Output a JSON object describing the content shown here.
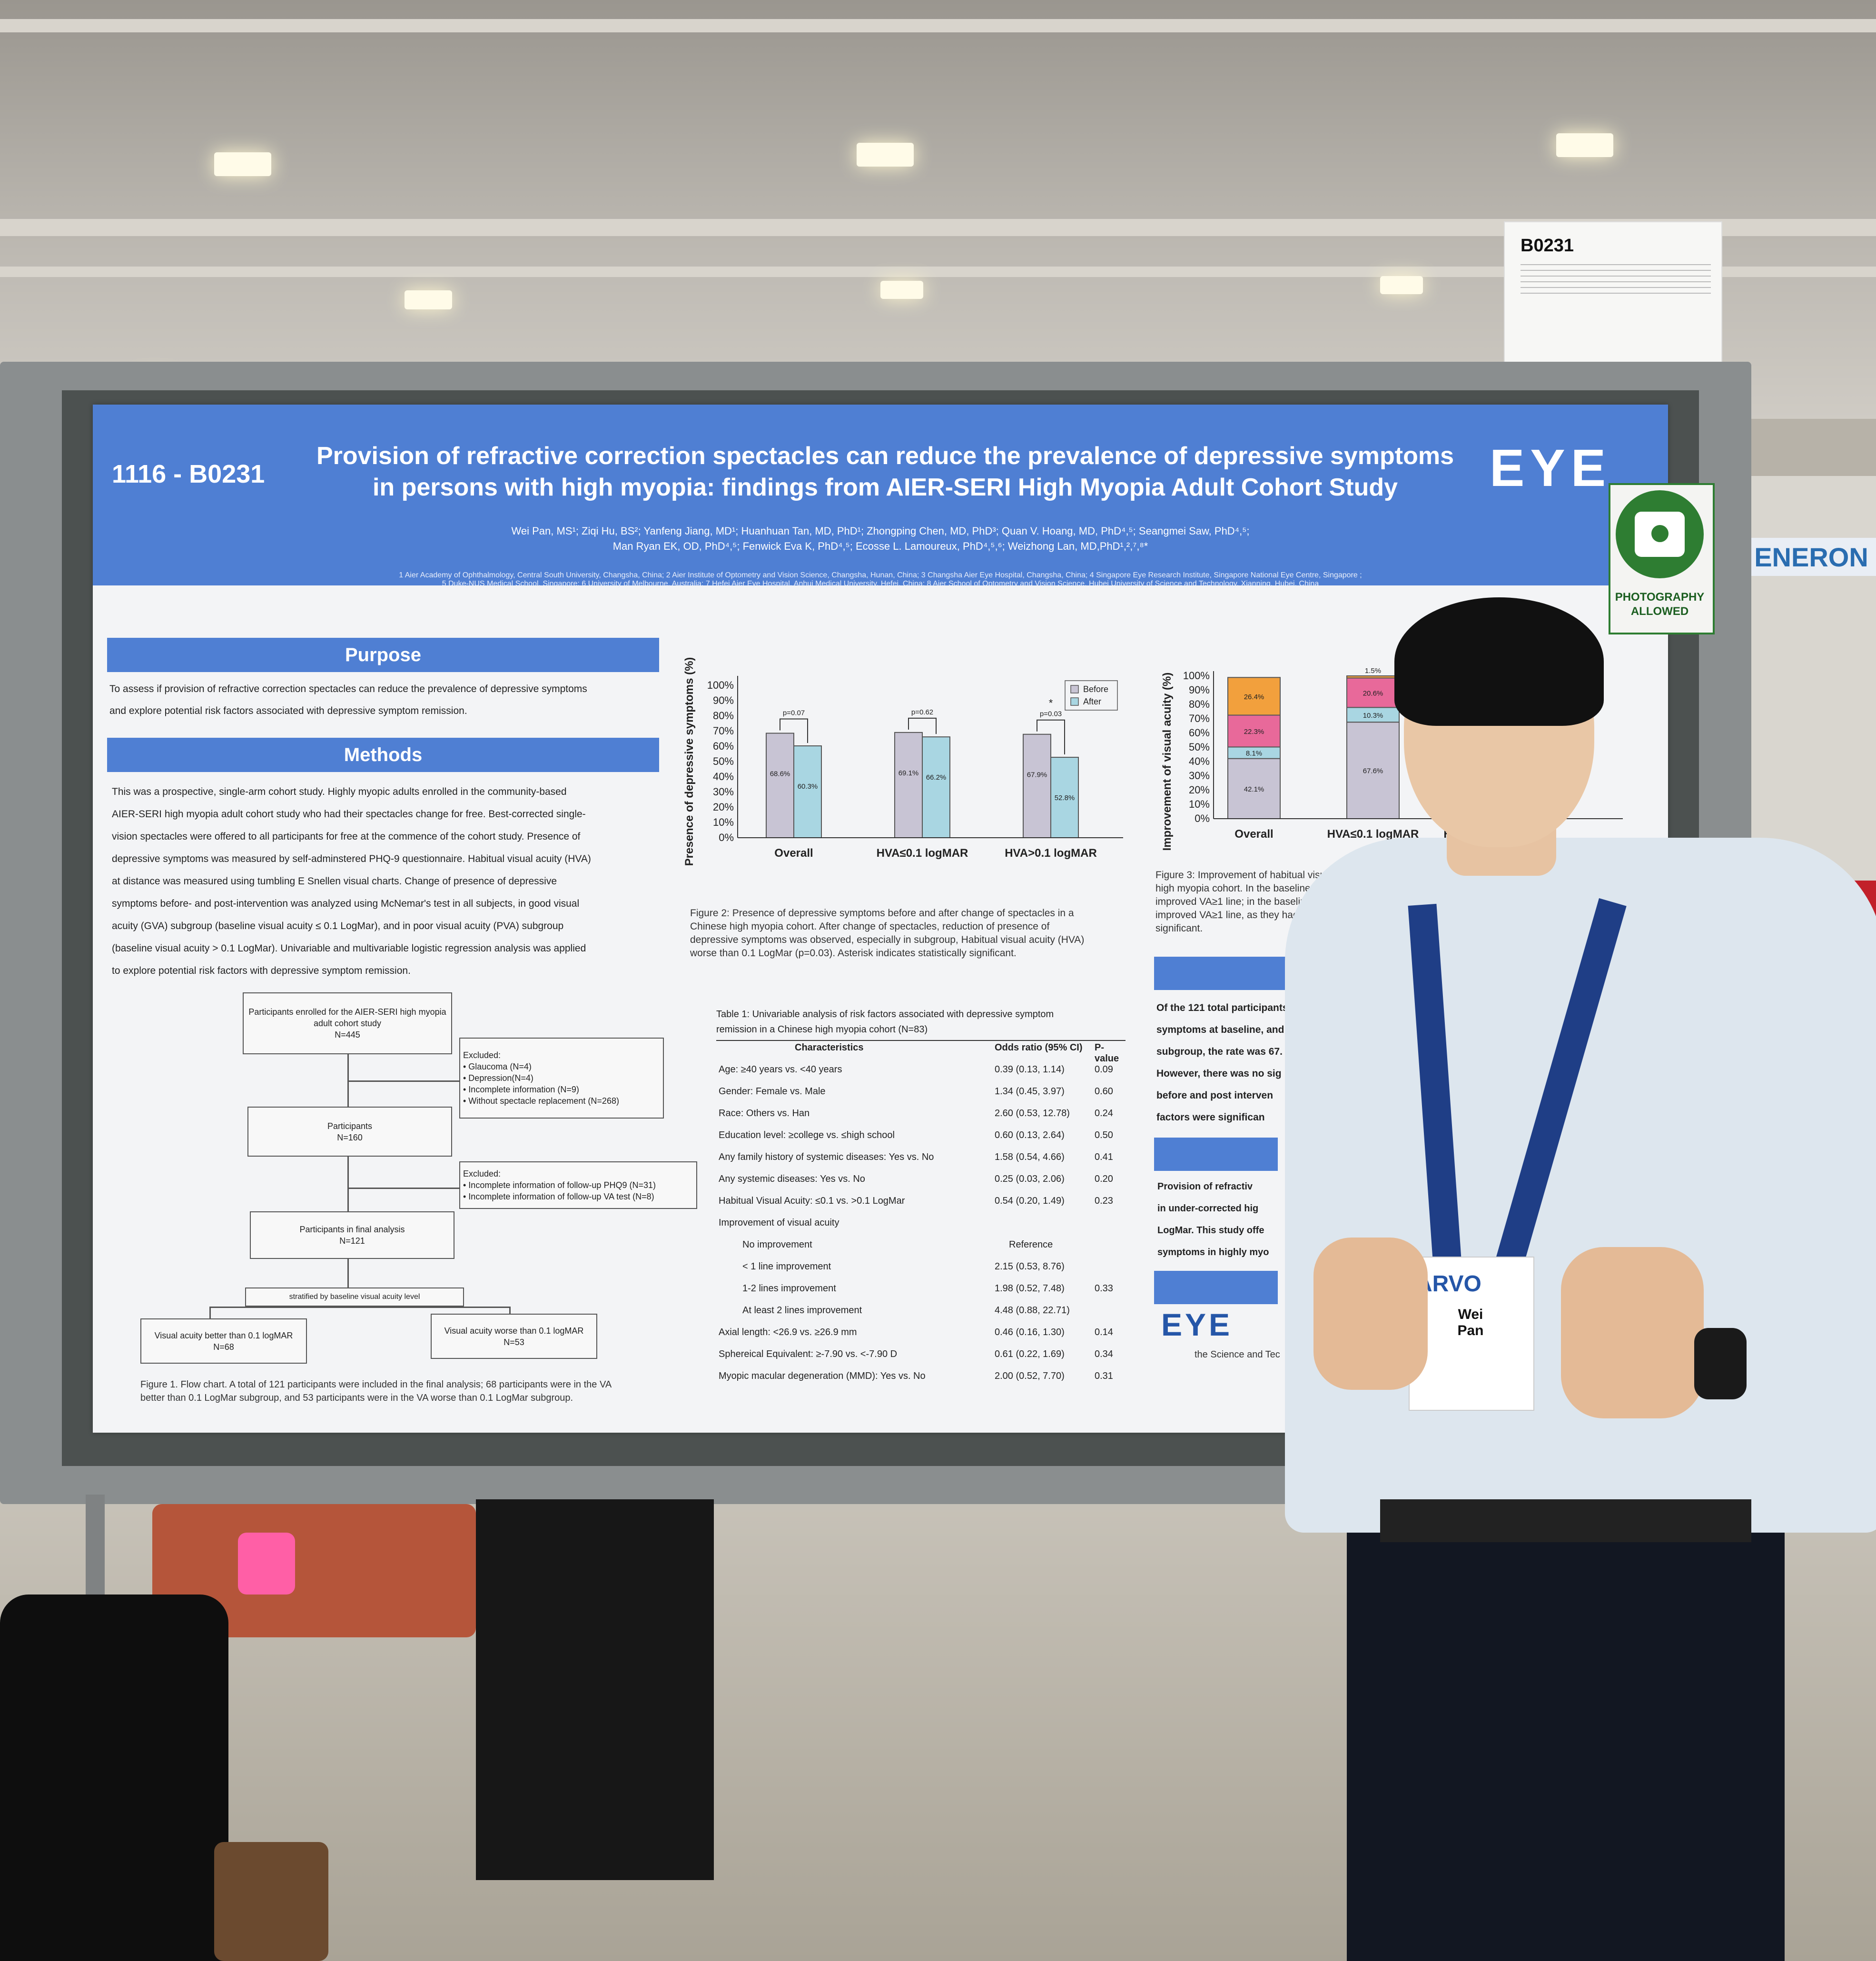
{
  "sign": {
    "title": "B0231"
  },
  "hall_booth": {
    "name": "ENERON"
  },
  "poster": {
    "id": "1116 - B0231",
    "title_line1": "Provision of refractive correction spectacles can reduce the prevalence of depressive symptoms",
    "title_line2": "in persons with high myopia: findings from AIER-SERI High Myopia Adult Cohort Study",
    "authors_line1": "Wei Pan, MS¹; Ziqi Hu, BS²; Yanfeng Jiang, MD¹; Huanhuan Tan, MD, PhD¹; Zhongping Chen, MD, PhD³; Quan V. Hoang, MD, PhD⁴,⁵; Seangmei Saw, PhD⁴,⁵;",
    "authors_line2": "Man Ryan EK, OD, PhD⁴,⁵; Fenwick Eva K, PhD⁴,⁵; Ecosse L. Lamoureux, PhD⁴,⁵,⁶; Weizhong Lan, MD,PhD¹,²,⁷,⁸*",
    "affiliations_line1": "1 Aier Academy of Ophthalmology, Central South University, Changsha, China; 2 Aier Institute of Optometry and Vision Science, Changsha, Hunan, China; 3 Changsha Aier Eye Hospital, Changsha, China; 4 Singapore Eye Research Institute, Singapore National Eye Centre, Singapore ;",
    "affiliations_line2": "5 Duke-NUS Medical School, Singapore; 6 University of Melbourne, Australia; 7 Hefei Aier Eye Hospital, Anhui Medical University, Hefei, China; 8 Aier School of Optometry and Vision Science, Hubei University of Science and Technology, Xianning, Hubei, China",
    "logo": "EYE",
    "photo_sign": {
      "line1": "PHOTOGRAPHY",
      "line2": "ALLOWED"
    },
    "purpose": {
      "heading": "Purpose",
      "line1": "To assess if provision of refractive correction spectacles can reduce the prevalence of depressive symptoms",
      "line2": "and explore potential risk factors associated with depressive symptom remission."
    },
    "methods": {
      "heading": "Methods",
      "lines": [
        "This was a prospective, single-arm cohort study. Highly myopic adults enrolled in the community-based",
        "AIER-SERI high myopia adult cohort study who had their spectacles change for free. Best-corrected single-",
        "vision spectacles were offered to all participants for free at the commence of the cohort study. Presence of",
        "depressive symptoms was measured by self-adminstered PHQ-9 questionnaire. Habitual visual acuity (HVA)",
        "at distance was measured using tumbling E Snellen visual charts. Change of presence of depressive",
        "symptoms before- and post-intervention was analyzed using McNemar's test in all subjects, in good visual",
        "acuity (GVA) subgroup (baseline visual acuity ≤ 0.1 LogMar), and in poor visual acuity (PVA) subgroup",
        "(baseline visual acuity > 0.1 LogMar).  Univariable and multivariable logistic regression analysis was applied",
        "to explore potential risk factors with depressive symptom remission."
      ]
    },
    "flowchart": {
      "enrolled": "Participants enrolled for the AIER-SERI high myopia adult cohort study\nN=445",
      "excluded1": "Excluded:\n• Glaucoma (N=4)\n• Depression(N=4)\n• Incomplete information (N=9)\n• Without spectacle replacement (N=268)",
      "participants": "Participants\nN=160",
      "excluded2": "Excluded:\n• Incomplete information of follow-up PHQ9 (N=31)\n• Incomplete information of follow-up VA test (N=8)",
      "final": "Participants in final analysis\nN=121",
      "stratified": "stratified by baseline visual acuity level",
      "better": "Visual acuity better than 0.1 logMAR\nN=68",
      "worse": "Visual acuity worse than 0.1 logMAR\nN=53",
      "caption_line1": "Figure 1. Flow chart. A total of 121 participants were included in the final analysis; 68 participants were in the VA",
      "caption_line2": "better than 0.1 LogMar subgroup, and 53 participants were in the VA worse than 0.1 LogMar subgroup."
    },
    "figure2_caption": [
      "Figure 2: Presence of depressive symptoms before and after change of spectacles in a",
      "Chinese high myopia cohort. After change of spectacles, reduction of presence of",
      "depressive symptoms was observed, especially in subgroup, Habitual visual acuity (HVA)",
      "worse than 0.1 LogMar (p=0.03). Asterisk indicates statistically significant."
    ],
    "figure3_caption": [
      "Figure 3: Improvement of habitual visual acuity (HVA) after c",
      "high myopia cohort. In the baseline HVA worse than 0.1 Lo",
      "improved VA≥1 line; in the baseline HVA better than 0.1 l",
      "improved VA≥1 line, as they had good VA to start with",
      "significant."
    ],
    "results_partial": [
      "Of the 121 total participants (",
      "symptoms at baseline, and d",
      "subgroup, the rate was 67.",
      "However, there was no sig",
      "before and post interven",
      "factors were significan"
    ],
    "conclusion_partial": [
      "Provision of refractiv",
      "in under-corrected hig",
      "LogMar. This study offe",
      "symptoms in highly myo"
    ],
    "footer_logo": "EYE",
    "footer_text": "the Science and Tec",
    "table": {
      "title_line1": "Table  1:  Univariable  analysis  of  risk  factors  associated  with  depressive  symptom",
      "title_line2": "remission in a Chinese high myopia cohort (N=83)",
      "headers": [
        "Characteristics",
        "Odds ratio (95% CI)",
        "P-value"
      ],
      "rows": [
        [
          "Age: ≥40 years vs. <40 years",
          "0.39 (0.13, 1.14)",
          "0.09"
        ],
        [
          "Gender: Female vs. Male",
          "1.34 (0.45, 3.97)",
          "0.60"
        ],
        [
          "Race: Others vs. Han",
          "2.60 (0.53, 12.78)",
          "0.24"
        ],
        [
          "Education level: ≥college vs. ≤high school",
          "0.60 (0.13, 2.64)",
          "0.50"
        ],
        [
          "Any family history of systemic diseases: Yes vs. No",
          "1.58 (0.54, 4.66)",
          "0.41"
        ],
        [
          "Any systemic diseases: Yes vs. No",
          "0.25 (0.03, 2.06)",
          "0.20"
        ],
        [
          "Habitual Visual Acuity: ≤0.1 vs. >0.1 LogMar",
          "0.54 (0.20, 1.49)",
          "0.23"
        ],
        [
          "Improvement of visual acuity",
          "",
          ""
        ],
        [
          "No improvement",
          "Reference",
          ""
        ],
        [
          "< 1 line improvement",
          "2.15 (0.53, 8.76)",
          ""
        ],
        [
          "1-2 lines improvement",
          "1.98 (0.52, 7.48)",
          "0.33"
        ],
        [
          "At least 2 lines improvement",
          "4.48 (0.88, 22.71)",
          ""
        ],
        [
          "Axial length: <26.9 vs. ≥26.9 mm",
          "0.46 (0.16, 1.30)",
          "0.14"
        ],
        [
          "Sphereical Equivalent: ≥-7.90 vs. <-7.90 D",
          "0.61 (0.22, 1.69)",
          "0.34"
        ],
        [
          "Myopic macular degeneration (MMD): Yes vs. No",
          "2.00 (0.52, 7.70)",
          "0.31"
        ]
      ]
    }
  },
  "chart_data": [
    {
      "type": "bar",
      "ylabel": "Presence of depressive symptoms (%)",
      "ylim": [
        0,
        100
      ],
      "yticks": [
        "0%",
        "10%",
        "20%",
        "30%",
        "40%",
        "50%",
        "60%",
        "70%",
        "80%",
        "90%",
        "100%"
      ],
      "categories": [
        "Overall",
        "HVA≤0.1 logMAR",
        "HVA>0.1 logMAR"
      ],
      "series": [
        {
          "name": "Before",
          "values": [
            68.6,
            69.1,
            67.9
          ],
          "labels": [
            "68.6%",
            "69.1%",
            "67.9%"
          ],
          "color": "#c8c4d4"
        },
        {
          "name": "After",
          "values": [
            60.3,
            66.2,
            52.8
          ],
          "labels": [
            "60.3%",
            "66.2%",
            "52.8%"
          ],
          "color": "#a9d6e2"
        }
      ],
      "pvalues": [
        "p=0.07",
        "p=0.62",
        "p=0.03"
      ],
      "significance": [
        "",
        "",
        "*"
      ],
      "legend": "top-right",
      "grid": false
    },
    {
      "type": "bar",
      "stacked": true,
      "ylabel": "Improvement of visual acuity (%)",
      "ylim": [
        0,
        100
      ],
      "yticks": [
        "0%",
        "10%",
        "20%",
        "30%",
        "40%",
        "50%",
        "60%",
        "70%",
        "80%",
        "90%",
        "100%"
      ],
      "categories": [
        "Overall",
        "HVA≤0.1 logMAR",
        "HV"
      ],
      "segments": [
        {
          "values": [
            42.1,
            67.6
          ],
          "labels": [
            "42.1%",
            "67.6%"
          ],
          "color": "#c8c4d4"
        },
        {
          "values": [
            8.1,
            10.3
          ],
          "labels": [
            "8.1%",
            "10.3%"
          ],
          "color": "#a9d6e2"
        },
        {
          "values": [
            22.3,
            20.6
          ],
          "labels": [
            "22.3%",
            "20.6%"
          ],
          "color": "#e8699a"
        },
        {
          "values": [
            26.4,
            1.5
          ],
          "labels": [
            "26.4%",
            "1.5%"
          ],
          "color": "#f2a03d"
        }
      ],
      "annotation": "p<0.0"
    }
  ]
}
